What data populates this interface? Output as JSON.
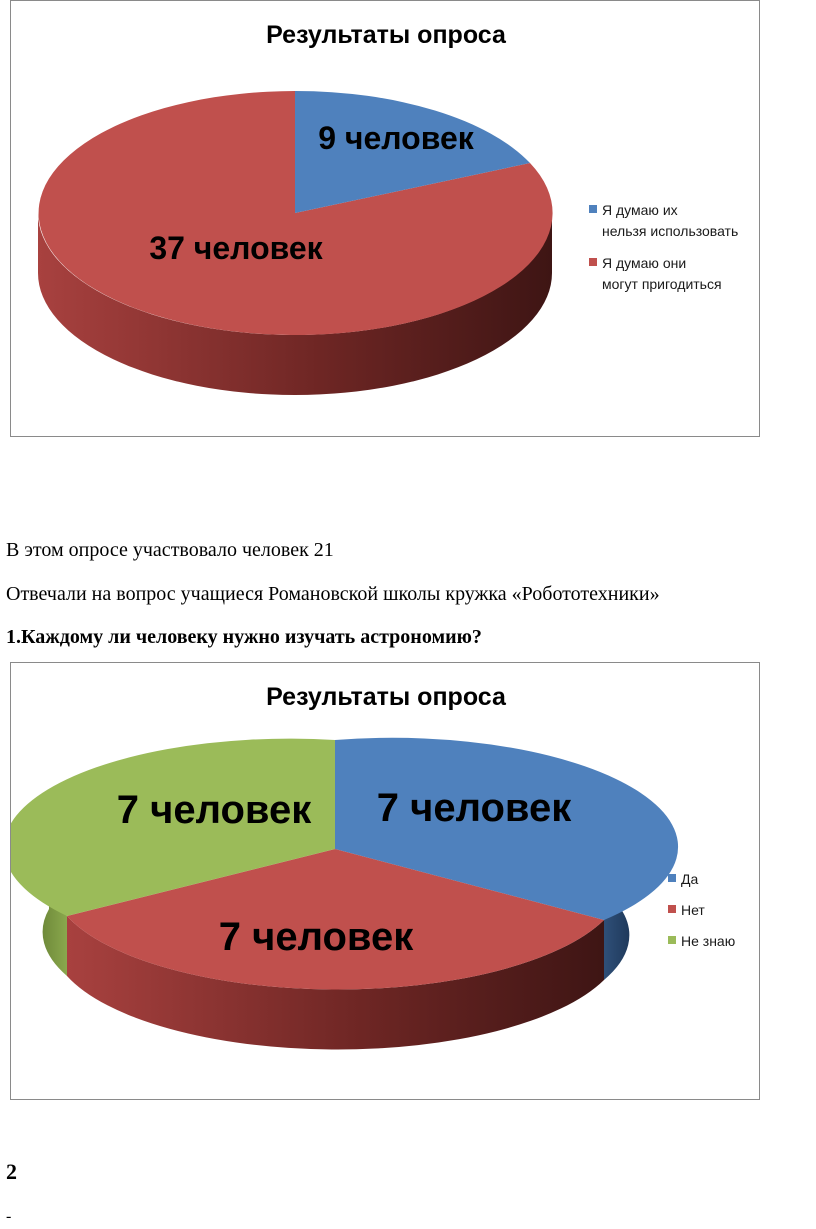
{
  "charts": [
    {
      "id": "chart1",
      "title": "Результаты опроса",
      "slice_labels": [
        "9 человек",
        "37 человек"
      ],
      "legend": [
        "Я думаю их нельзя использовать",
        "Я думаю они могут пригодиться"
      ],
      "colors": [
        "#4f81bd",
        "#c0504d"
      ]
    },
    {
      "id": "chart2",
      "title": "Результаты опроса",
      "slice_labels": [
        "7 человек",
        "7 человек",
        "7 человек"
      ],
      "legend": [
        "Да",
        "Нет",
        "Не знаю"
      ],
      "colors": [
        "#4f81bd",
        "#c0504d",
        "#9bbb59"
      ]
    }
  ],
  "chart_data": [
    {
      "type": "pie",
      "title": "Результаты опроса",
      "categories": [
        "Я думаю их нельзя использовать",
        "Я думаю они могут пригодиться"
      ],
      "values": [
        9,
        37
      ],
      "data_labels": [
        "9 человек",
        "37 человек"
      ],
      "colors": [
        "#4f81bd",
        "#c0504d"
      ],
      "legend_position": "right",
      "style": "3d"
    },
    {
      "type": "pie",
      "title": "Результаты опроса",
      "categories": [
        "Да",
        "Нет",
        "Не знаю"
      ],
      "values": [
        7,
        7,
        7
      ],
      "data_labels": [
        "7 человек",
        "7 человек",
        "7 человек"
      ],
      "colors": [
        "#4f81bd",
        "#c0504d",
        "#9bbb59"
      ],
      "legend_position": "right",
      "style": "3d"
    }
  ],
  "text": {
    "participants": "В этом опросе участвовало человек 21",
    "respondents": "Отвечали на вопрос учащиеся Романовской школы кружка «Робототехники»",
    "question1": "1.Каждому ли человеку нужно изучать астрономию?",
    "page_number": "2",
    "trailing_mark": "-"
  }
}
